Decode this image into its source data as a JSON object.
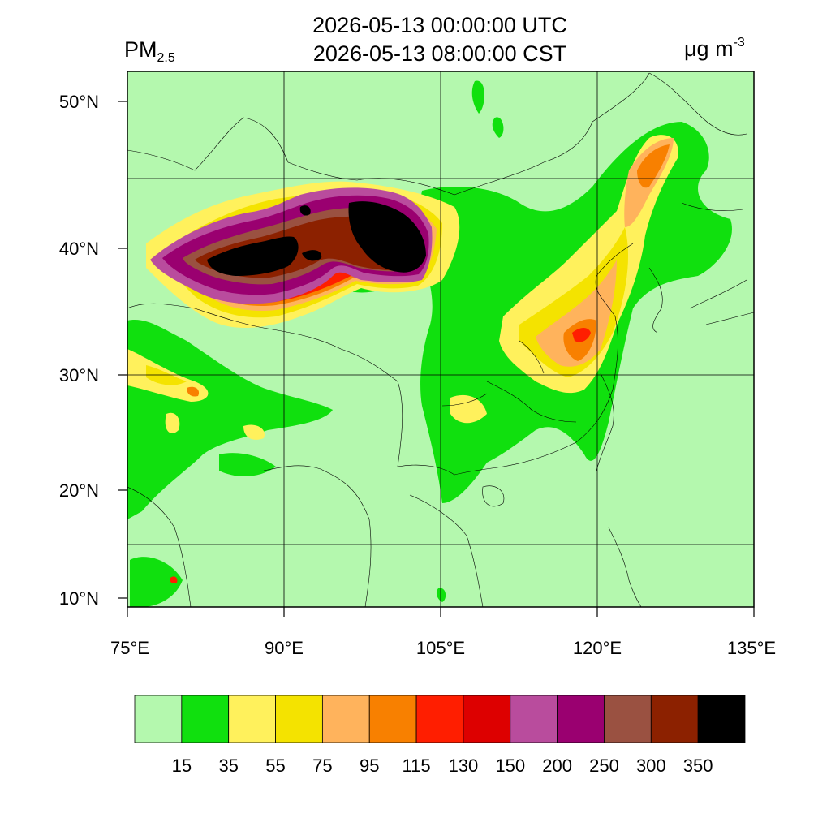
{
  "header": {
    "title_utc": "2026-05-13 00:00:00 UTC",
    "title_cst": "2026-05-13 08:00:00 CST",
    "variable_main": "PM",
    "variable_sub": "2.5",
    "unit_main": "μg m",
    "unit_sup": "-3"
  },
  "map": {
    "lon_range": [
      75,
      135
    ],
    "lat_range": [
      9,
      52
    ],
    "lon_ticks": [
      "75°E",
      "90°E",
      "105°E",
      "120°E",
      "135°E"
    ],
    "lat_ticks": [
      "50°N",
      "40°N",
      "30°N",
      "20°N",
      "10°N"
    ],
    "background_color": "#b4f8ae"
  },
  "colorbar": {
    "colors": [
      "#b4f8ae",
      "#10e00e",
      "#fff15c",
      "#f4e300",
      "#ffb35c",
      "#f88000",
      "#ff1e00",
      "#dd0000",
      "#b94c9d",
      "#9a0070",
      "#9a5141",
      "#8c2100",
      "#000000"
    ],
    "labels": [
      "15",
      "35",
      "55",
      "75",
      "95",
      "115",
      "130",
      "150",
      "200",
      "250",
      "300",
      "350"
    ]
  }
}
